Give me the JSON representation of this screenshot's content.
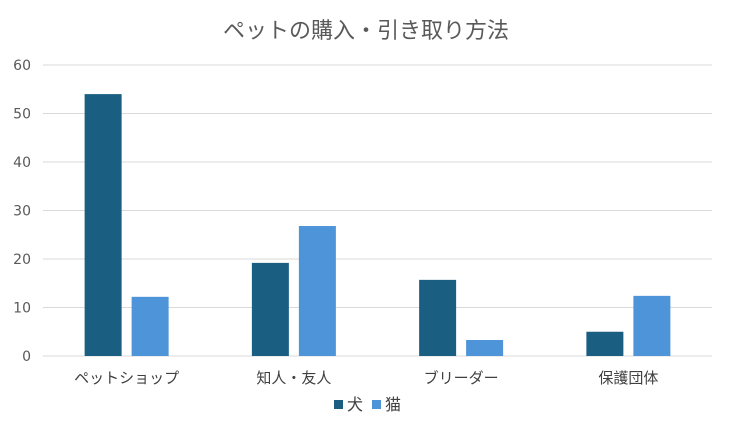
{
  "chart_data": {
    "type": "bar",
    "title": "ペットの購入・引き取り方法",
    "categories": [
      "ペットショップ",
      "知人・友人",
      "ブリーダー",
      "保護団体"
    ],
    "series": [
      {
        "name": "犬",
        "color": "#1a5f82",
        "values": [
          54,
          19.2,
          15.7,
          5
        ]
      },
      {
        "name": "猫",
        "color": "#4d94d8",
        "values": [
          12.2,
          26.8,
          3.3,
          12.4
        ]
      }
    ],
    "ylim": [
      0,
      60
    ],
    "yticks": [
      0,
      10,
      20,
      30,
      40,
      50,
      60
    ],
    "grid": true,
    "legend_position": "bottom"
  }
}
